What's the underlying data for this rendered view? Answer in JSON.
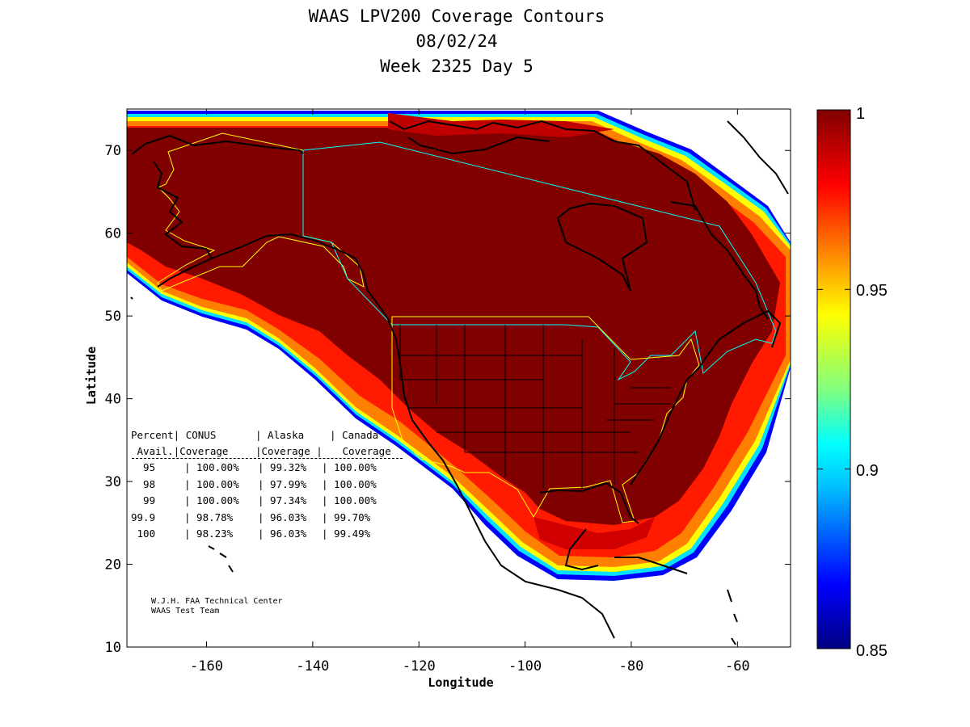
{
  "title": {
    "line1": "WAAS LPV200 Coverage Contours",
    "line2": "08/02/24",
    "line3": "Week 2325 Day 5"
  },
  "chart_data": {
    "type": "heatmap",
    "xlabel": "Longitude",
    "ylabel": "Latitude",
    "xlim": [
      -175,
      -50
    ],
    "ylim": [
      10,
      75
    ],
    "xticks": [
      -160,
      -140,
      -120,
      -100,
      -80,
      -60
    ],
    "yticks": [
      10,
      20,
      30,
      40,
      50,
      60,
      70
    ],
    "colorbar": {
      "range": [
        0.85,
        1
      ],
      "ticks": [
        "1",
        "0.95",
        "0.9",
        "0.85"
      ],
      "colormap": [
        "#000080",
        "#0000ff",
        "#00bfff",
        "#00ffff",
        "#7fff7f",
        "#ffff00",
        "#ff8000",
        "#ff0000",
        "#800000"
      ]
    },
    "coverage_table": {
      "header1": [
        "Percent",
        "CONUS",
        "Alaska",
        "Canada"
      ],
      "header2": [
        "Avail.",
        "Coverage",
        "Coverage",
        "Coverage"
      ],
      "rows": [
        {
          "percent": "95",
          "conus": "100.00%",
          "alaska": "99.32%",
          "canada": "100.00%"
        },
        {
          "percent": "98",
          "conus": "100.00%",
          "alaska": "97.99%",
          "canada": "100.00%"
        },
        {
          "percent": "99",
          "conus": "100.00%",
          "alaska": "97.34%",
          "canada": "100.00%"
        },
        {
          "percent": "99.9",
          "conus": "98.78%",
          "alaska": "96.03%",
          "canada": "99.70%"
        },
        {
          "percent": "100",
          "conus": "98.23%",
          "alaska": "96.03%",
          "canada": "99.49%"
        }
      ]
    }
  },
  "credit": {
    "line1": "W.J.H. FAA Technical Center",
    "line2": "WAAS Test Team"
  },
  "colors": {
    "max": "#800000",
    "red": "#ff0000",
    "orange": "#ff8000",
    "yellow": "#ffff00",
    "cyan": "#00ffff",
    "blue": "#0000ff",
    "coast": "#000000",
    "region_conus": "#ffff00",
    "region_canada": "#00ffff"
  }
}
